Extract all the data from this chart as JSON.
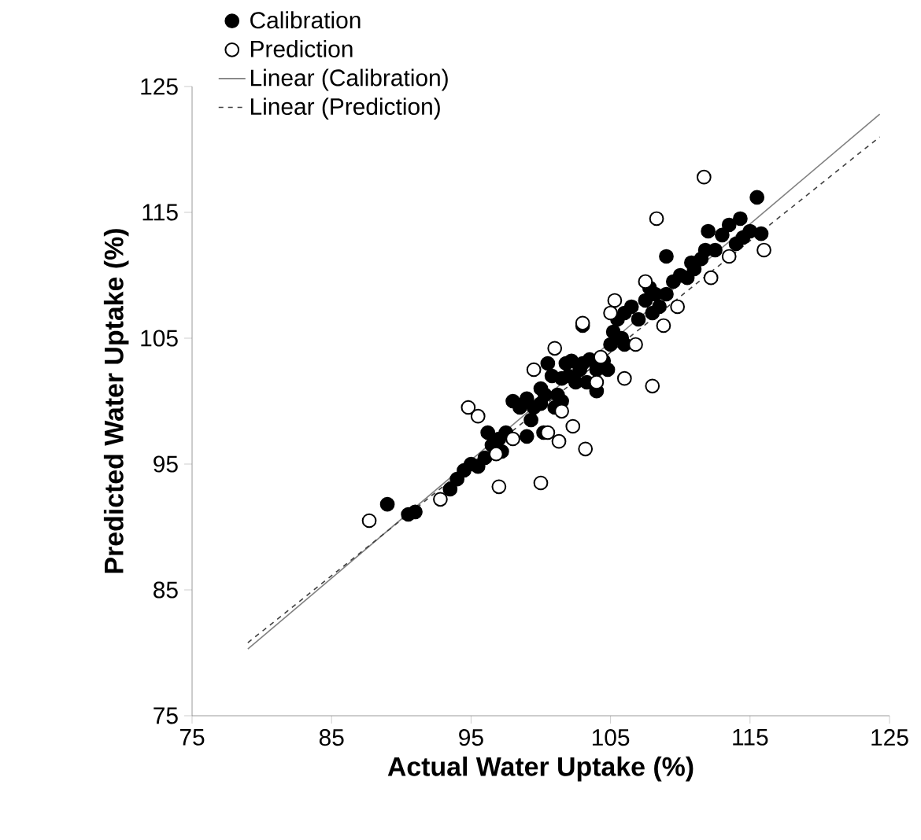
{
  "chart_data": {
    "type": "scatter",
    "xlabel": "Actual Water Uptake (%)",
    "ylabel": "Predicted Water Uptake (%)",
    "xlim": [
      75,
      125
    ],
    "ylim": [
      75,
      125
    ],
    "xticks": [
      75,
      85,
      95,
      105,
      115,
      125
    ],
    "yticks": [
      75,
      85,
      95,
      105,
      115,
      125
    ],
    "grid": false,
    "legend": "top left",
    "series": [
      {
        "name": "Calibration",
        "marker": "circle",
        "color": "#000000",
        "x": [
          89,
          90.5,
          91,
          93.5,
          94,
          94.5,
          95,
          95.5,
          96,
          96.2,
          96.5,
          97,
          97.2,
          97.5,
          98,
          98.5,
          99,
          99.3,
          99.5,
          100,
          100,
          100.3,
          100.5,
          100.8,
          101,
          101.2,
          101.5,
          101.5,
          101.8,
          102,
          102.2,
          102.5,
          102.8,
          103,
          103,
          103.3,
          103.5,
          104,
          104,
          104.5,
          104.8,
          105,
          105.2,
          105.5,
          105.8,
          106,
          106,
          106.5,
          107,
          107.5,
          107.8,
          108,
          108.2,
          108.5,
          109,
          109,
          109.5,
          110,
          110.5,
          110.8,
          111,
          111.5,
          111.8,
          112,
          112.5,
          113,
          113.5,
          114,
          114.3,
          114.5,
          115,
          115.5,
          115.8,
          100.2,
          99
        ],
        "values": [
          91.8,
          91,
          91.2,
          93,
          93.8,
          94.5,
          95,
          94.8,
          95.5,
          97.5,
          96.5,
          97,
          96,
          97.5,
          100,
          99.5,
          100.2,
          98.5,
          99.5,
          99.8,
          101,
          100.5,
          103,
          102,
          99.5,
          100.5,
          100,
          101.8,
          103,
          102,
          103.2,
          101.5,
          102.5,
          103,
          106,
          101.5,
          103.3,
          102.5,
          100.8,
          103.2,
          102.5,
          104.5,
          105.5,
          106.5,
          105,
          107,
          104.5,
          107.5,
          106.5,
          108,
          109,
          107,
          108.5,
          107.5,
          108.5,
          111.5,
          109.5,
          110,
          109.8,
          111,
          110.5,
          111.3,
          112,
          113.5,
          112,
          113.2,
          114,
          112.5,
          114.5,
          113,
          113.5,
          116.2,
          113.3,
          97.5,
          97.2
        ]
      },
      {
        "name": "Prediction",
        "marker": "circle",
        "color": "#ffffff",
        "x": [
          87.7,
          92.8,
          94.8,
          95.5,
          96.8,
          97,
          98,
          99.5,
          100,
          100.5,
          101,
          101.3,
          101.5,
          102.3,
          103,
          103.2,
          104,
          105,
          105.3,
          106,
          107.5,
          108,
          108.3,
          108.8,
          109.8,
          111.7,
          112.2,
          113.5,
          116,
          104.3,
          106.8
        ],
        "values": [
          90.5,
          92.2,
          99.5,
          98.8,
          95.8,
          93.2,
          97,
          102.5,
          93.5,
          97.5,
          104.2,
          96.8,
          99.2,
          98,
          106.2,
          96.2,
          101.5,
          107,
          108,
          101.8,
          109.5,
          101.2,
          114.5,
          106,
          107.5,
          117.8,
          109.8,
          111.5,
          112,
          103.5,
          104.5
        ]
      },
      {
        "name": "Linear (Calibration)",
        "type": "line",
        "color": "#808080",
        "line_style": "solid",
        "marker": "none",
        "x": [
          79,
          124.3
        ],
        "values": [
          80.3,
          122.8
        ]
      },
      {
        "name": "Linear (Prediction)",
        "type": "line",
        "color": "#404040",
        "line_style": "dashed",
        "marker": "none",
        "x": [
          79,
          124.3
        ],
        "values": [
          80.8,
          121
        ]
      }
    ]
  }
}
